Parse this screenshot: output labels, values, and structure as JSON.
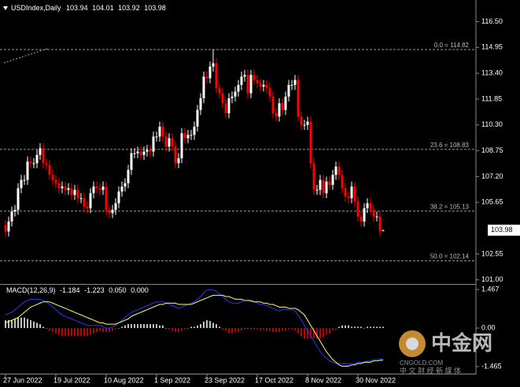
{
  "chart_data": [
    {
      "type": "candlestick",
      "title": "USDIndex,Daily",
      "up_color": "#ffffff",
      "down_color": "#ff0000",
      "categories": [
        "27 Jun 2022",
        null,
        null,
        null,
        null,
        null,
        null,
        null,
        null,
        null,
        null,
        null,
        null,
        null,
        null,
        null,
        "19 Jul 2022",
        null,
        null,
        null,
        null,
        null,
        null,
        null,
        null,
        null,
        null,
        null,
        null,
        null,
        null,
        null,
        "10 Aug 2022",
        null,
        null,
        null,
        null,
        null,
        null,
        null,
        null,
        null,
        null,
        null,
        null,
        null,
        null,
        null,
        "1 Sep 2022",
        null,
        null,
        null,
        null,
        null,
        null,
        null,
        null,
        null,
        null,
        null,
        null,
        null,
        null,
        null,
        "23 Sep 2022",
        null,
        null,
        null,
        null,
        null,
        null,
        null,
        null,
        null,
        null,
        null,
        null,
        null,
        null,
        null,
        "17 Oct 2022",
        null,
        null,
        null,
        null,
        null,
        null,
        null,
        null,
        null,
        null,
        null,
        null,
        null,
        null,
        null,
        "8 Nov 2022",
        null,
        null,
        null,
        null,
        null,
        null,
        null,
        null,
        null,
        null,
        null,
        null,
        null,
        null,
        null,
        "30 Nov 2022",
        null,
        null,
        null,
        null,
        null,
        null,
        null,
        null
      ],
      "open": [
        104.3,
        103.9,
        104.5,
        105.1,
        105.2,
        106.5,
        107.0,
        107.0,
        108.1,
        108.0,
        108.0,
        108.5,
        108.9,
        108.0,
        107.9,
        107.3,
        107.0,
        106.8,
        106.5,
        106.6,
        106.4,
        106.5,
        106.1,
        106.4,
        105.9,
        105.9,
        105.4,
        105.3,
        106.2,
        106.6,
        106.5,
        106.4,
        106.6,
        105.2,
        105.0,
        105.2,
        105.6,
        106.3,
        106.6,
        106.8,
        107.6,
        108.6,
        108.6,
        108.7,
        108.5,
        108.7,
        108.8,
        108.7,
        109.6,
        109.6,
        110.2,
        109.6,
        109.0,
        109.5,
        109.0,
        108.0,
        108.3,
        109.8,
        109.5,
        109.7,
        109.7,
        110.2,
        111.2,
        111.9,
        113.2,
        113.1,
        113.8,
        114.0,
        112.5,
        112.2,
        111.6,
        111.0,
        111.9,
        112.0,
        112.3,
        112.7,
        113.2,
        113.3,
        112.2,
        113.3,
        113.0,
        112.8,
        112.6,
        112.7,
        112.5,
        112.0,
        111.0,
        110.8,
        111.6,
        111.2,
        112.0,
        112.7,
        112.7,
        113.0,
        110.8,
        110.3,
        110.3,
        110.5,
        108.0,
        106.4,
        106.4,
        107.0,
        106.2,
        106.9,
        106.7,
        107.3,
        107.8,
        107.3,
        106.5,
        106.0,
        105.9,
        106.6,
        105.7,
        104.8,
        104.5,
        105.3,
        105.6,
        105.2,
        104.8,
        104.8,
        103.94
      ],
      "high": [
        104.6,
        104.8,
        105.4,
        105.5,
        106.8,
        107.3,
        107.3,
        108.4,
        108.4,
        108.3,
        108.8,
        109.2,
        109.2,
        108.3,
        108.2,
        107.6,
        107.3,
        107.1,
        106.9,
        106.9,
        106.8,
        106.8,
        106.7,
        106.7,
        106.2,
        106.2,
        105.7,
        106.5,
        106.9,
        106.9,
        106.8,
        106.9,
        106.9,
        105.5,
        105.5,
        105.9,
        106.6,
        106.9,
        107.1,
        107.9,
        108.9,
        108.9,
        109.0,
        109.0,
        109.0,
        109.1,
        109.1,
        109.9,
        109.9,
        110.5,
        110.5,
        109.9,
        109.8,
        109.8,
        109.3,
        108.6,
        110.1,
        110.1,
        110.0,
        110.0,
        110.5,
        111.5,
        112.2,
        113.5,
        113.5,
        114.1,
        114.82,
        114.3,
        112.8,
        112.5,
        111.9,
        112.2,
        112.3,
        112.6,
        113.0,
        113.5,
        113.6,
        113.6,
        113.6,
        113.6,
        113.3,
        113.1,
        113.0,
        113.0,
        112.8,
        112.3,
        111.3,
        111.9,
        111.9,
        112.3,
        113.0,
        113.0,
        113.3,
        113.3,
        111.1,
        110.6,
        110.8,
        110.8,
        108.3,
        106.7,
        107.3,
        107.3,
        107.2,
        107.2,
        107.6,
        108.1,
        108.1,
        107.6,
        106.8,
        106.3,
        106.9,
        106.9,
        106.0,
        105.1,
        105.6,
        105.9,
        105.9,
        105.5,
        105.1,
        105.1,
        104.01
      ],
      "low": [
        103.6,
        103.6,
        104.2,
        104.8,
        104.9,
        106.2,
        106.7,
        106.7,
        107.7,
        107.7,
        107.7,
        108.2,
        107.7,
        107.6,
        107.0,
        106.7,
        106.5,
        106.2,
        106.2,
        106.1,
        106.1,
        105.8,
        105.8,
        105.6,
        105.6,
        105.1,
        105.0,
        105.0,
        105.9,
        106.2,
        106.1,
        106.1,
        104.9,
        104.7,
        104.7,
        104.9,
        105.3,
        106.0,
        106.3,
        106.5,
        107.3,
        108.3,
        108.3,
        108.2,
        108.2,
        108.4,
        108.4,
        108.4,
        109.3,
        109.3,
        109.3,
        108.7,
        108.7,
        108.7,
        107.7,
        107.7,
        108.0,
        109.2,
        109.2,
        109.4,
        109.4,
        109.9,
        110.9,
        111.6,
        112.8,
        112.8,
        113.5,
        112.2,
        111.9,
        111.3,
        110.7,
        110.7,
        111.6,
        111.7,
        112.0,
        112.4,
        112.9,
        111.9,
        111.9,
        112.7,
        112.5,
        112.3,
        112.3,
        112.2,
        111.7,
        110.7,
        110.5,
        110.5,
        110.9,
        110.9,
        111.7,
        112.4,
        112.4,
        110.5,
        110.0,
        110.0,
        110.0,
        107.7,
        106.1,
        106.1,
        106.1,
        105.9,
        105.9,
        106.4,
        106.4,
        107.0,
        107.0,
        106.2,
        105.7,
        105.6,
        105.6,
        105.4,
        104.5,
        104.2,
        104.2,
        105.0,
        104.9,
        104.5,
        104.5,
        103.6,
        103.92
      ],
      "close": [
        103.9,
        104.5,
        105.1,
        105.2,
        106.5,
        107.0,
        107.0,
        108.1,
        108.0,
        108.0,
        108.5,
        108.9,
        108.0,
        107.9,
        107.3,
        107.0,
        106.8,
        106.5,
        106.6,
        106.4,
        106.5,
        106.1,
        106.4,
        105.9,
        105.9,
        105.4,
        105.3,
        106.2,
        106.6,
        106.5,
        106.4,
        106.6,
        105.2,
        105.0,
        105.2,
        105.6,
        106.3,
        106.6,
        106.8,
        107.6,
        108.6,
        108.6,
        108.7,
        108.5,
        108.7,
        108.8,
        108.7,
        109.6,
        109.6,
        110.2,
        109.6,
        109.0,
        109.5,
        109.0,
        108.0,
        108.3,
        109.8,
        109.5,
        109.7,
        109.7,
        110.2,
        111.2,
        111.9,
        113.2,
        113.1,
        113.8,
        114.0,
        112.5,
        112.2,
        111.6,
        111.0,
        111.9,
        112.0,
        112.3,
        112.7,
        113.2,
        113.3,
        112.2,
        113.3,
        113.0,
        112.8,
        112.6,
        112.7,
        112.5,
        112.0,
        111.0,
        110.8,
        111.6,
        111.2,
        112.0,
        112.7,
        112.7,
        113.0,
        110.8,
        110.3,
        110.3,
        110.5,
        108.0,
        106.4,
        106.4,
        107.0,
        106.2,
        106.9,
        106.7,
        107.3,
        107.8,
        107.3,
        106.5,
        106.0,
        105.9,
        106.6,
        105.7,
        104.8,
        104.5,
        105.3,
        105.6,
        105.2,
        104.8,
        104.8,
        103.9,
        103.98
      ],
      "ylim": [
        100.8,
        117.75
      ],
      "yticks": [
        {
          "value": 116.5,
          "label": "116.50"
        },
        {
          "value": 114.95,
          "label": "114.95"
        },
        {
          "value": 113.4,
          "label": "113.40"
        },
        {
          "value": 111.85,
          "label": "111.85"
        },
        {
          "value": 110.3,
          "label": "110.30"
        },
        {
          "value": 108.75,
          "label": "108.75"
        },
        {
          "value": 107.2,
          "label": "107.20"
        },
        {
          "value": 105.65,
          "label": "105.65"
        },
        {
          "value": 102.55,
          "label": "102.55"
        },
        {
          "value": 101.0,
          "label": "101.00"
        }
      ],
      "levels": [
        {
          "value": 114.82,
          "label": "0.0 = 114.82"
        },
        {
          "value": 108.83,
          "label": "23.6 = 108.83"
        },
        {
          "value": 105.13,
          "label": "38.2 = 105.13"
        },
        {
          "value": 102.14,
          "label": "50.0 = 102.14"
        }
      ]
    },
    {
      "type": "macd",
      "title": "MACD(12,26,9)",
      "readout": [
        "-1.184",
        "-1.223",
        "0.050",
        "0.000"
      ],
      "histogram": {
        "up_color": "#ffffff",
        "down_color": "#ff0000",
        "values": [
          0.3,
          0.3,
          0.3,
          0.35,
          0.4,
          0.4,
          0.4,
          0.35,
          0.3,
          0.25,
          0.2,
          0.15,
          0.05,
          0,
          -0.1,
          -0.15,
          -0.2,
          -0.25,
          -0.3,
          -0.3,
          -0.3,
          -0.3,
          -0.3,
          -0.3,
          -0.3,
          -0.3,
          -0.3,
          -0.25,
          -0.2,
          -0.15,
          -0.1,
          -0.15,
          -0.15,
          -0.15,
          -0.1,
          -0.05,
          0,
          0.05,
          0.1,
          0.15,
          0.15,
          0.15,
          0.15,
          0.15,
          0.15,
          0.15,
          0.15,
          0.15,
          0.15,
          0.1,
          0.1,
          0,
          -0.05,
          -0.1,
          -0.15,
          -0.15,
          -0.1,
          -0.05,
          0,
          0.05,
          0.05,
          0.1,
          0.15,
          0.25,
          0.3,
          0.27,
          0.2,
          0.15,
          0.05,
          -0.05,
          -0.1,
          -0.2,
          -0.2,
          -0.15,
          -0.15,
          -0.1,
          0,
          0,
          -0.05,
          0,
          -0.05,
          -0.1,
          -0.05,
          -0.1,
          -0.1,
          -0.15,
          -0.15,
          -0.15,
          -0.1,
          -0.1,
          -0.05,
          -0.05,
          -0.1,
          -0.2,
          -0.3,
          -0.4,
          -0.4,
          -0.4,
          -0.4,
          -0.4,
          -0.4,
          -0.35,
          -0.25,
          -0.2,
          -0.1,
          -0.05,
          0.05,
          0.1,
          0.1,
          0.1,
          0.05,
          0.05,
          0.05,
          0.05,
          0,
          0.05,
          0.05,
          0.05,
          0.05,
          0.05,
          0.05
        ]
      },
      "series": [
        {
          "color": "#1e3cff",
          "values": [
            0.5,
            0.55,
            0.6,
            0.7,
            0.8,
            0.9,
            1.0,
            1.05,
            1.1,
            1.1,
            1.1,
            1.1,
            1.05,
            1.0,
            0.9,
            0.8,
            0.7,
            0.6,
            0.5,
            0.45,
            0.4,
            0.35,
            0.3,
            0.25,
            0.2,
            0.15,
            0.1,
            0.1,
            0.1,
            0.1,
            0.1,
            0.05,
            0.0,
            0.0,
            0.05,
            0.1,
            0.2,
            0.3,
            0.4,
            0.5,
            0.6,
            0.65,
            0.7,
            0.75,
            0.8,
            0.85,
            0.9,
            0.95,
            1.0,
            1.0,
            1.0,
            0.95,
            0.9,
            0.85,
            0.8,
            0.75,
            0.8,
            0.85,
            0.9,
            0.95,
            1.0,
            1.1,
            1.2,
            1.35,
            1.45,
            1.47,
            1.45,
            1.4,
            1.3,
            1.2,
            1.1,
            1.0,
            0.95,
            0.95,
            0.95,
            1.0,
            1.05,
            1.05,
            1.0,
            1.0,
            0.95,
            0.9,
            0.9,
            0.85,
            0.8,
            0.75,
            0.7,
            0.65,
            0.7,
            0.7,
            0.7,
            0.7,
            0.65,
            0.5,
            0.3,
            0.1,
            -0.1,
            -0.3,
            -0.5,
            -0.7,
            -0.9,
            -1.05,
            -1.15,
            -1.25,
            -1.3,
            -1.35,
            -1.35,
            -1.35,
            -1.35,
            -1.35,
            -1.35,
            -1.35,
            -1.3,
            -1.3,
            -1.3,
            -1.25,
            -1.25,
            -1.2,
            -1.2,
            -1.18,
            -1.184
          ]
        },
        {
          "color": "#ffff66",
          "values": [
            0.2,
            0.25,
            0.3,
            0.35,
            0.4,
            0.5,
            0.6,
            0.7,
            0.8,
            0.85,
            0.9,
            0.95,
            1.0,
            1.0,
            1.0,
            0.95,
            0.9,
            0.85,
            0.8,
            0.75,
            0.7,
            0.65,
            0.6,
            0.55,
            0.5,
            0.45,
            0.4,
            0.35,
            0.3,
            0.25,
            0.2,
            0.2,
            0.15,
            0.15,
            0.15,
            0.15,
            0.2,
            0.25,
            0.3,
            0.35,
            0.45,
            0.5,
            0.55,
            0.6,
            0.65,
            0.7,
            0.75,
            0.8,
            0.85,
            0.9,
            0.9,
            0.95,
            0.95,
            0.95,
            0.95,
            0.9,
            0.9,
            0.9,
            0.9,
            0.9,
            0.95,
            1.0,
            1.05,
            1.1,
            1.15,
            1.2,
            1.25,
            1.25,
            1.25,
            1.25,
            1.2,
            1.2,
            1.15,
            1.1,
            1.1,
            1.1,
            1.05,
            1.05,
            1.05,
            1.0,
            1.0,
            1.0,
            0.95,
            0.95,
            0.9,
            0.9,
            0.85,
            0.8,
            0.8,
            0.8,
            0.75,
            0.75,
            0.75,
            0.7,
            0.6,
            0.5,
            0.3,
            0.1,
            -0.1,
            -0.3,
            -0.5,
            -0.7,
            -0.9,
            -1.05,
            -1.2,
            -1.3,
            -1.4,
            -1.45,
            -1.45,
            -1.45,
            -1.4,
            -1.4,
            -1.35,
            -1.35,
            -1.3,
            -1.3,
            -1.3,
            -1.25,
            -1.25,
            -1.23,
            -1.223
          ]
        }
      ],
      "ylim": [
        -1.705,
        1.62
      ],
      "yticks": [
        1.467,
        {
          "value": 0,
          "label": "0.00"
        },
        -1.465
      ]
    }
  ],
  "watermark": {
    "logo": "中金网",
    "site": "CNGOLD.COM",
    "slogan": "中 文 财 经 新 媒 体"
  }
}
